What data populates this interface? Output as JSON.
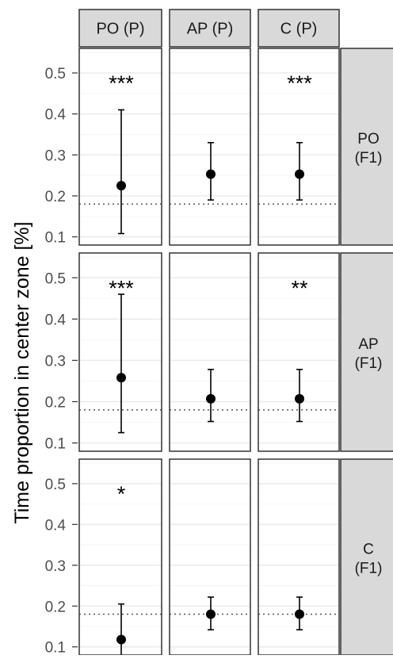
{
  "chart_data": {
    "type": "scatter",
    "subtype": "point-range facet grid",
    "ylabel": "Time proportion in center zone [%]",
    "ylim": [
      0.08,
      0.56
    ],
    "y_ticks": [
      0.1,
      0.2,
      0.3,
      0.4,
      0.5
    ],
    "y_tick_labels": [
      "0.1",
      "0.2",
      "0.3",
      "0.4",
      "0.5"
    ],
    "reference_line": 0.18,
    "grid": true,
    "columns": [
      "PO (P)",
      "AP (P)",
      "C (P)"
    ],
    "rows": [
      {
        "label_line1": "PO",
        "label_line2": "(F1)"
      },
      {
        "label_line1": "AP",
        "label_line2": "(F1)"
      },
      {
        "label_line1": "C",
        "label_line2": "(F1)"
      }
    ],
    "cells": [
      [
        {
          "mean": 0.225,
          "lower": 0.108,
          "upper": 0.41,
          "sig": "***"
        },
        {
          "mean": 0.253,
          "lower": 0.19,
          "upper": 0.33,
          "sig": ""
        },
        {
          "mean": 0.253,
          "lower": 0.19,
          "upper": 0.33,
          "sig": "***"
        }
      ],
      [
        {
          "mean": 0.258,
          "lower": 0.125,
          "upper": 0.46,
          "sig": "***"
        },
        {
          "mean": 0.207,
          "lower": 0.152,
          "upper": 0.278,
          "sig": ""
        },
        {
          "mean": 0.207,
          "lower": 0.152,
          "upper": 0.278,
          "sig": "**"
        }
      ],
      [
        {
          "mean": 0.118,
          "lower": 0.068,
          "upper": 0.205,
          "sig": "*"
        },
        {
          "mean": 0.18,
          "lower": 0.142,
          "upper": 0.222,
          "sig": ""
        },
        {
          "mean": 0.18,
          "lower": 0.142,
          "upper": 0.222,
          "sig": ""
        }
      ]
    ],
    "colors": {
      "strip_fill": "#d9d9d9",
      "strip_border": "#333333",
      "panel_border": "#333333",
      "grid_major": "#ebebeb",
      "grid_minor": "#f5f5f5",
      "point": "#000000",
      "reference_line": "#555555",
      "tick_text": "#4d4d4d",
      "text": "#1a1a1a"
    }
  }
}
